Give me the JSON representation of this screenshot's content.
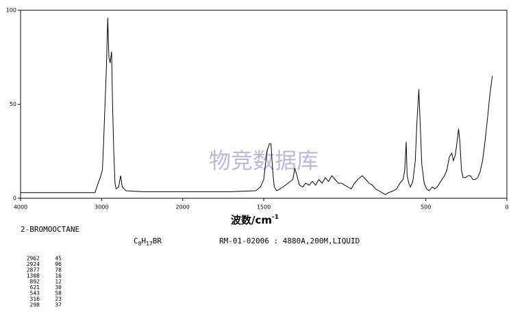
{
  "chart_data": {
    "type": "line",
    "x_label": "波数/cm",
    "x_label_sup": "-1",
    "xlim": [
      4000,
      0
    ],
    "xticks": [
      4000,
      3000,
      2000,
      1500,
      500,
      0
    ],
    "x_scale_change": {
      "at": 2000,
      "ratio": 2
    },
    "ylim": [
      0,
      100
    ],
    "yticks": [
      0,
      50,
      100
    ],
    "color": "#000000",
    "x": [
      4000,
      3500,
      3083,
      3017,
      2990,
      2975,
      2962,
      2940,
      2924,
      2910,
      2895,
      2877,
      2865,
      2850,
      2835,
      2820,
      2790,
      2765,
      2745,
      2700,
      2500,
      2000,
      1700,
      1550,
      1520,
      1500,
      1480,
      1465,
      1455,
      1445,
      1435,
      1420,
      1400,
      1380,
      1350,
      1320,
      1308,
      1295,
      1280,
      1260,
      1240,
      1220,
      1200,
      1180,
      1160,
      1140,
      1120,
      1100,
      1080,
      1060,
      1040,
      1020,
      1000,
      980,
      960,
      940,
      920,
      892,
      870,
      850,
      830,
      810,
      790,
      770,
      750,
      730,
      700,
      680,
      660,
      640,
      630,
      621,
      615,
      605,
      595,
      580,
      565,
      555,
      543,
      535,
      525,
      510,
      495,
      480,
      470,
      460,
      445,
      430,
      415,
      400,
      385,
      370,
      355,
      340,
      330,
      318,
      310,
      298,
      290,
      280,
      270,
      255,
      240,
      225,
      210,
      195,
      180,
      165,
      150,
      135,
      120,
      105,
      90
    ],
    "values": [
      3,
      3,
      3,
      11,
      15,
      30,
      45,
      70,
      96,
      75,
      72,
      78,
      50,
      25,
      8,
      5,
      6,
      12,
      6,
      4,
      3.5,
      3.5,
      3.5,
      4,
      6,
      10,
      25,
      29,
      29,
      15,
      6,
      4,
      5,
      6,
      8,
      10,
      16,
      12,
      7,
      6,
      8,
      7,
      9,
      7,
      10,
      8,
      11,
      9,
      12,
      10,
      8,
      8,
      7,
      6,
      5,
      8,
      10,
      12,
      10,
      8,
      7,
      5,
      4,
      3,
      2,
      3,
      4,
      5,
      8,
      10,
      15,
      30,
      12,
      8,
      6,
      9,
      20,
      40,
      58,
      40,
      18,
      8,
      5,
      4,
      5,
      6,
      5,
      6,
      8,
      10,
      12,
      15,
      22,
      24,
      20,
      23,
      28,
      37,
      30,
      15,
      11,
      11,
      12,
      12,
      10,
      10,
      11,
      14,
      20,
      30,
      42,
      55,
      65
    ]
  },
  "watermark": "物竞数据库",
  "compound": "2-BROMOOCTANE",
  "formula": [
    "C",
    "8",
    "H",
    "17",
    "BR"
  ],
  "sample_info": "RM-01-02006 : 4880A,200M,LIQUID",
  "peaks": [
    [
      "2962",
      "45"
    ],
    [
      "2924",
      "96"
    ],
    [
      "2877",
      "78"
    ],
    [
      "1308",
      "16"
    ],
    [
      "892",
      "12"
    ],
    [
      "621",
      "30"
    ],
    [
      "543",
      "58"
    ],
    [
      "316",
      "23"
    ],
    [
      "298",
      "37"
    ]
  ]
}
